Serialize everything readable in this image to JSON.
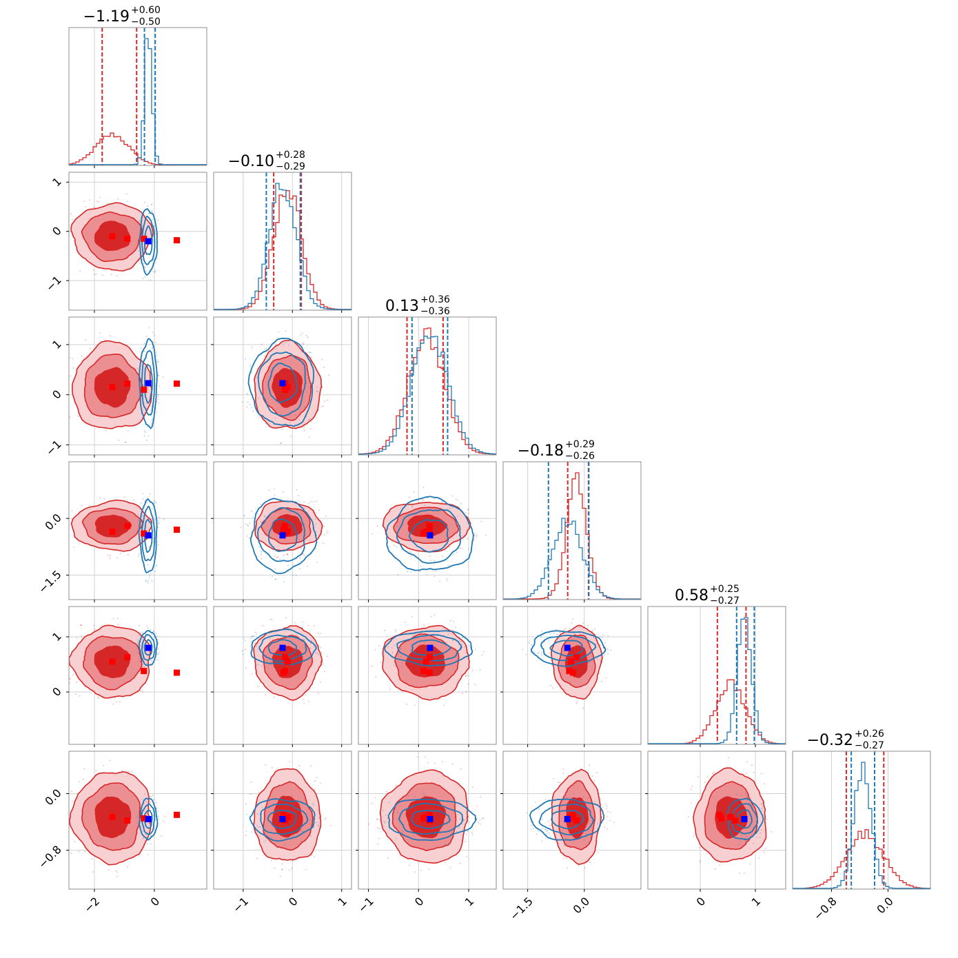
{
  "chart_data": {
    "type": "corner",
    "n_params": 6,
    "titles": [
      {
        "median": "−1.19",
        "plus": "+0.60",
        "minus": "−0.50"
      },
      {
        "median": "−0.10",
        "plus": "+0.28",
        "minus": "−0.29"
      },
      {
        "median": "0.13",
        "plus": "+0.36",
        "minus": "−0.36"
      },
      {
        "median": "−0.18",
        "plus": "+0.29",
        "minus": "−0.26"
      },
      {
        "median": "0.58",
        "plus": "+0.25",
        "minus": "−0.27"
      },
      {
        "median": "−0.32",
        "plus": "+0.26",
        "minus": "−0.27"
      }
    ],
    "ranges": [
      [
        -2.85,
        1.75
      ],
      [
        -1.6,
        1.2
      ],
      [
        -1.2,
        1.55
      ],
      [
        -2.15,
        1.5
      ],
      [
        -0.95,
        1.55
      ],
      [
        -1.35,
        0.6
      ]
    ],
    "ticks": [
      {
        "values": [
          -2,
          0
        ],
        "labels": [
          "−2",
          "0"
        ]
      },
      {
        "values": [
          -1,
          0,
          1
        ],
        "labels": [
          "−1",
          "0",
          "1"
        ]
      },
      {
        "values": [
          -1,
          0,
          1
        ],
        "labels": [
          "−1",
          "0",
          "1"
        ]
      },
      {
        "values": [
          -1.5,
          0.0
        ],
        "labels": [
          "−1.5",
          "0.0"
        ]
      },
      {
        "values": [
          0,
          1
        ],
        "labels": [
          "0",
          "1"
        ]
      },
      {
        "values": [
          -0.8,
          0.0
        ],
        "labels": [
          "−0.8",
          "0.0"
        ]
      }
    ],
    "grid": true,
    "series": [
      {
        "color": "#d62728",
        "style": "filled-contours",
        "centers": [
          -1.4,
          -0.1,
          0.15,
          -0.2,
          0.55,
          -0.33
        ],
        "sigmas": [
          0.55,
          0.28,
          0.36,
          0.27,
          0.27,
          0.27
        ],
        "quantiles": [
          [
            -1.74,
            -0.59
          ],
          [
            -0.38,
            0.18
          ],
          [
            -0.23,
            0.49
          ],
          [
            -0.44,
            0.11
          ],
          [
            0.31,
            0.83
          ],
          [
            -0.59,
            -0.06
          ]
        ],
        "markers": [
          [
            -1.4,
            -0.1,
            0.15,
            -0.35,
            0.55,
            -0.33
          ],
          [
            -0.9,
            -0.15,
            0.22,
            -0.2,
            0.63,
            -0.38
          ],
          [
            -0.35,
            -0.15,
            0.1,
            -0.4,
            0.38,
            -0.35
          ],
          [
            0.75,
            -0.18,
            0.22,
            -0.3,
            0.35,
            -0.3
          ]
        ]
      },
      {
        "color": "#1f77b4",
        "style": "line-contours",
        "centers": [
          -0.2,
          -0.2,
          0.23,
          -0.45,
          0.8,
          -0.36
        ],
        "sigmas": [
          0.12,
          0.27,
          0.36,
          0.4,
          0.13,
          0.12
        ],
        "quantiles": [
          [
            -0.33,
            0.03
          ],
          [
            -0.53,
            0.16
          ],
          [
            -0.13,
            0.58
          ],
          [
            -0.95,
            0.12
          ],
          [
            0.66,
            0.98
          ],
          [
            -0.52,
            -0.19
          ]
        ],
        "markers": [
          [
            -0.2,
            -0.2,
            0.23,
            -0.45,
            0.8,
            -0.36
          ]
        ]
      }
    ]
  }
}
